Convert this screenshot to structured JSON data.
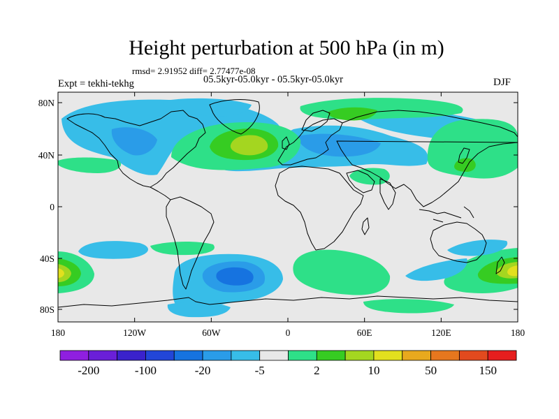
{
  "title": "Height perturbation at 500 hPa (in m)",
  "stats_text": "rmsd= 2.91952 diff= 2.77477e-08",
  "subtitle": "05.5kyr-05.0kyr - 05.5kyr-05.0kyr",
  "left_tag": "Expt = tekhi-tekhg",
  "right_tag": "DJF",
  "map": {
    "projection": "cylindrical-equidistant",
    "lon_range": [
      -180,
      180
    ],
    "lat_range": [
      -90,
      90
    ],
    "background_color": "#e8e8e8",
    "lat_ticks": [
      "80N",
      "40N",
      "0",
      "40S",
      "80S"
    ],
    "lon_ticks": [
      "180",
      "120W",
      "60W",
      "0",
      "60E",
      "120E",
      "180"
    ]
  },
  "colorbar": {
    "colors": [
      "#8f1fe0",
      "#6a1fd8",
      "#3a22cc",
      "#2246d8",
      "#1673e0",
      "#2a9ce8",
      "#37bde8",
      "#e8e8e8",
      "#2ee088",
      "#36cc22",
      "#a4d620",
      "#e2e01e",
      "#e8a91e",
      "#e6771e",
      "#e24a1e",
      "#e61e1e"
    ],
    "tick_labels": [
      "-200",
      "-100",
      "-20",
      "-5",
      "2",
      "10",
      "50",
      "150"
    ]
  }
}
